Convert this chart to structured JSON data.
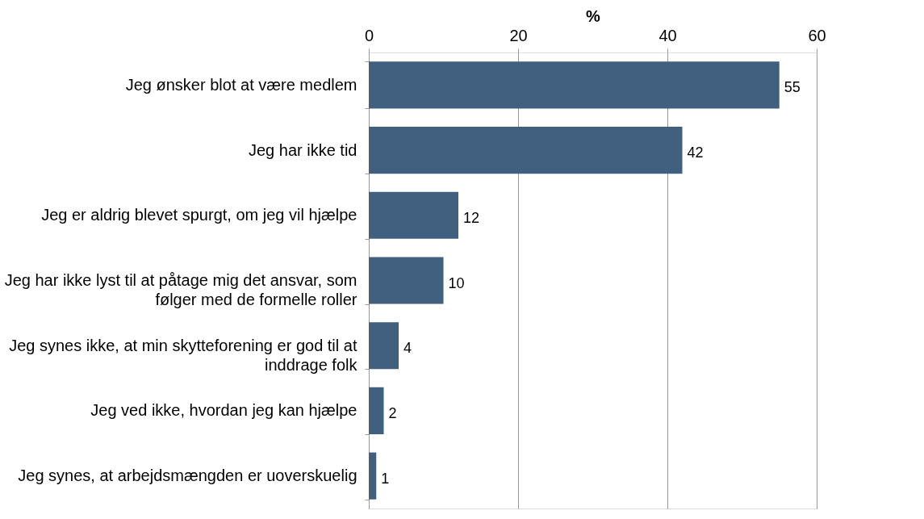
{
  "chart_data": {
    "type": "bar",
    "orientation": "horizontal",
    "xlabel": "%",
    "categories": [
      "Jeg ønsker blot at være medlem",
      "Jeg har ikke tid",
      "Jeg er aldrig blevet spurgt, om jeg vil hjælpe",
      "Jeg har ikke lyst til at påtage mig det ansvar, som følger med de formelle roller",
      "Jeg synes ikke, at min skytteforening er god til at inddrage folk",
      "Jeg ved ikke, hvordan jeg kan hjælpe",
      "Jeg synes, at arbejdsmængden er uoverskuelig"
    ],
    "values": [
      55,
      42,
      12,
      10,
      4,
      2,
      1
    ],
    "color": "#41607f",
    "xlim": [
      0,
      60
    ],
    "xticks": [
      0,
      20,
      40,
      60
    ],
    "grid": "x",
    "data_labels": true
  }
}
